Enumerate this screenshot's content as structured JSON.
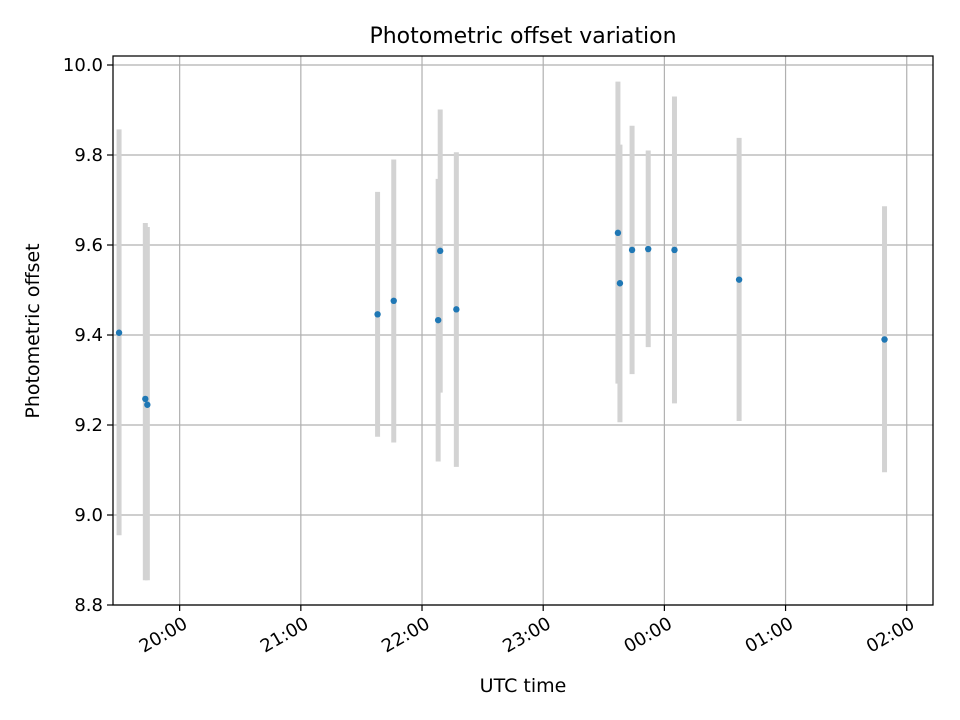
{
  "chart_data": {
    "type": "scatter",
    "title": "Photometric offset variation",
    "xlabel": "UTC time",
    "ylabel": "Photometric offset",
    "x_axis": {
      "kind": "time",
      "ticks": [
        "20:00",
        "21:00",
        "22:00",
        "23:00",
        "00:00",
        "01:00",
        "02:00"
      ],
      "range": [
        "19:27",
        "02:13"
      ]
    },
    "y_axis": {
      "ticks": [
        "8.8",
        "9.0",
        "9.2",
        "9.4",
        "9.6",
        "9.8",
        "10.0"
      ],
      "range": [
        8.8,
        10.02
      ]
    },
    "grid": true,
    "colors": {
      "points": "#1f77b4",
      "error_bars": "#d3d3d3",
      "grid": "#b0b0b0"
    },
    "points": [
      {
        "x": "19:30",
        "y": 9.405,
        "ylow": 8.955,
        "yhigh": 9.857
      },
      {
        "x": "19:43",
        "y": 9.258,
        "ylow": 8.855,
        "yhigh": 9.649
      },
      {
        "x": "19:44",
        "y": 9.245,
        "ylow": 8.855,
        "yhigh": 9.64
      },
      {
        "x": "21:38",
        "y": 9.446,
        "ylow": 9.174,
        "yhigh": 9.718
      },
      {
        "x": "21:46",
        "y": 9.476,
        "ylow": 9.161,
        "yhigh": 9.79
      },
      {
        "x": "22:08",
        "y": 9.433,
        "ylow": 9.119,
        "yhigh": 9.747
      },
      {
        "x": "22:09",
        "y": 9.587,
        "ylow": 9.272,
        "yhigh": 9.901
      },
      {
        "x": "22:17",
        "y": 9.457,
        "ylow": 9.107,
        "yhigh": 9.806
      },
      {
        "x": "23:37",
        "y": 9.627,
        "ylow": 9.292,
        "yhigh": 9.963
      },
      {
        "x": "23:38",
        "y": 9.515,
        "ylow": 9.206,
        "yhigh": 9.823
      },
      {
        "x": "23:44",
        "y": 9.589,
        "ylow": 9.313,
        "yhigh": 9.865
      },
      {
        "x": "23:52",
        "y": 9.591,
        "ylow": 9.373,
        "yhigh": 9.81
      },
      {
        "x": "00:05",
        "y": 9.589,
        "ylow": 9.248,
        "yhigh": 9.93
      },
      {
        "x": "00:37",
        "y": 9.523,
        "ylow": 9.209,
        "yhigh": 9.838
      },
      {
        "x": "01:49",
        "y": 9.39,
        "ylow": 9.095,
        "yhigh": 9.686
      }
    ]
  }
}
